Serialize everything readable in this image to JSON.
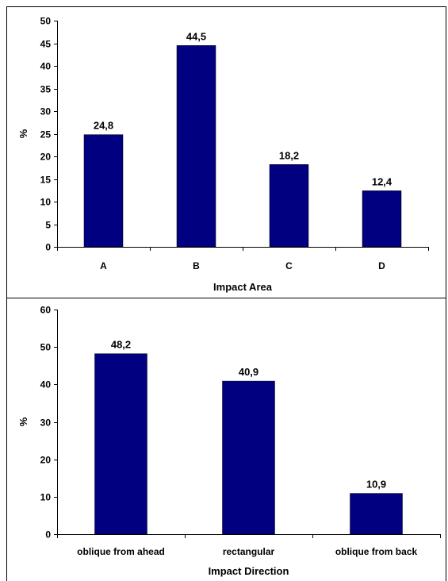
{
  "chart_data": [
    {
      "type": "bar",
      "categories": [
        "A",
        "B",
        "C",
        "D"
      ],
      "values": [
        24.8,
        44.5,
        18.2,
        12.4
      ],
      "data_labels": [
        "24,8",
        "44,5",
        "18,2",
        "12,4"
      ],
      "xlabel": "Impact Area",
      "ylabel": "%",
      "ylim": [
        0,
        50
      ],
      "yticks": [
        "0",
        "5",
        "10",
        "15",
        "20",
        "25",
        "30",
        "35",
        "40",
        "45",
        "50"
      ],
      "bar_color": "#000080",
      "grid": false
    },
    {
      "type": "bar",
      "categories": [
        "oblique from ahead",
        "rectangular",
        "oblique from back"
      ],
      "values": [
        48.2,
        40.9,
        10.9
      ],
      "data_labels": [
        "48,2",
        "40,9",
        "10,9"
      ],
      "xlabel": "Impact Direction",
      "ylabel": "%",
      "ylim": [
        0,
        60
      ],
      "yticks": [
        "0",
        "10",
        "20",
        "30",
        "40",
        "50",
        "60"
      ],
      "bar_color": "#000080",
      "grid": false
    }
  ]
}
